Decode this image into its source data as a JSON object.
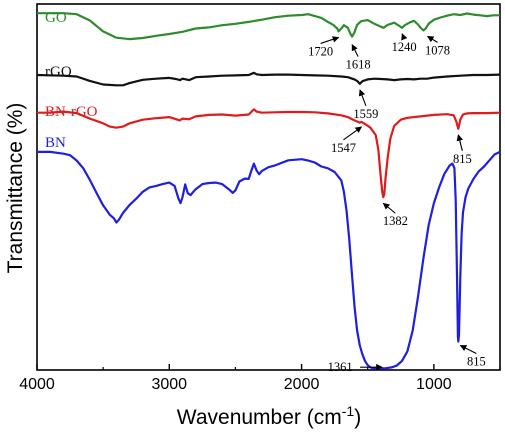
{
  "chart_data": {
    "type": "line",
    "xlabel": "Wavenumber (cm",
    "xlabel_sup": "-1",
    "xlabel_tail": ")",
    "ylabel": "Transmittance (%)",
    "xlim": [
      4000,
      500
    ],
    "x_reversed": true,
    "xticks": [
      4000,
      3000,
      2000,
      1000
    ],
    "xtick_labels": [
      "4000",
      "3000",
      "2000",
      "1000"
    ],
    "y_units": "arbitrary transmittance, curves vertically offset (0-100 scale)",
    "ylim": [
      0,
      100
    ],
    "grid": false,
    "legend": "inline labels at top-left",
    "series": [
      {
        "name": "GO",
        "color": "#2e8b2e",
        "points": [
          [
            4000,
            97.5
          ],
          [
            3800,
            97.5
          ],
          [
            3700,
            97.2
          ],
          [
            3600,
            95.5
          ],
          [
            3500,
            92.5
          ],
          [
            3400,
            90.8
          ],
          [
            3300,
            90.4
          ],
          [
            3200,
            90.7
          ],
          [
            3100,
            91.3
          ],
          [
            3000,
            91.8
          ],
          [
            2900,
            92.4
          ],
          [
            2800,
            93.3
          ],
          [
            2700,
            93.6
          ],
          [
            2600,
            94.2
          ],
          [
            2500,
            94.6
          ],
          [
            2400,
            95.1
          ],
          [
            2300,
            95.7
          ],
          [
            2200,
            96.4
          ],
          [
            2100,
            96.8
          ],
          [
            2000,
            97
          ],
          [
            1950,
            97.2
          ],
          [
            1900,
            96.7
          ],
          [
            1850,
            96.2
          ],
          [
            1800,
            95.1
          ],
          [
            1760,
            94.3
          ],
          [
            1730,
            93.3
          ],
          [
            1720,
            92.5
          ],
          [
            1700,
            93.3
          ],
          [
            1680,
            94.2
          ],
          [
            1650,
            93.5
          ],
          [
            1630,
            91.8
          ],
          [
            1618,
            91.1
          ],
          [
            1600,
            92.3
          ],
          [
            1580,
            94.3
          ],
          [
            1550,
            95.3
          ],
          [
            1500,
            95.6
          ],
          [
            1450,
            94.6
          ],
          [
            1400,
            93.8
          ],
          [
            1380,
            93.5
          ],
          [
            1350,
            94.3
          ],
          [
            1300,
            94.9
          ],
          [
            1260,
            94
          ],
          [
            1240,
            93.5
          ],
          [
            1220,
            94.2
          ],
          [
            1180,
            95
          ],
          [
            1150,
            95.4
          ],
          [
            1120,
            94.4
          ],
          [
            1100,
            93.5
          ],
          [
            1078,
            92.8
          ],
          [
            1060,
            93.4
          ],
          [
            1040,
            94.6
          ],
          [
            1000,
            95.7
          ],
          [
            950,
            96.3
          ],
          [
            900,
            96.8
          ],
          [
            850,
            97.2
          ],
          [
            800,
            97
          ],
          [
            750,
            97.4
          ],
          [
            700,
            97.1
          ],
          [
            650,
            96.9
          ],
          [
            600,
            96.7
          ],
          [
            550,
            96.9
          ],
          [
            500,
            96.9
          ]
        ]
      },
      {
        "name": "rGO",
        "color": "#111111",
        "points": [
          [
            4000,
            80.6
          ],
          [
            3800,
            80.4
          ],
          [
            3700,
            80.2
          ],
          [
            3600,
            79
          ],
          [
            3500,
            78
          ],
          [
            3400,
            77.8
          ],
          [
            3350,
            77.8
          ],
          [
            3300,
            78.4
          ],
          [
            3200,
            79.3
          ],
          [
            3100,
            79.6
          ],
          [
            3000,
            79.8
          ],
          [
            2950,
            79.5
          ],
          [
            2920,
            79.2
          ],
          [
            2900,
            79.6
          ],
          [
            2850,
            79.2
          ],
          [
            2800,
            80
          ],
          [
            2700,
            80.2
          ],
          [
            2600,
            80.4
          ],
          [
            2500,
            80.5
          ],
          [
            2400,
            80.6
          ],
          [
            2360,
            81.2
          ],
          [
            2340,
            80.8
          ],
          [
            2300,
            80.6
          ],
          [
            2200,
            80.7
          ],
          [
            2100,
            80.7
          ],
          [
            2000,
            80.6
          ],
          [
            1900,
            80.5
          ],
          [
            1800,
            80.4
          ],
          [
            1700,
            80.2
          ],
          [
            1650,
            80
          ],
          [
            1600,
            79.4
          ],
          [
            1580,
            79
          ],
          [
            1559,
            78.2
          ],
          [
            1540,
            78.9
          ],
          [
            1500,
            79.4
          ],
          [
            1450,
            79.6
          ],
          [
            1400,
            79.5
          ],
          [
            1350,
            79.4
          ],
          [
            1300,
            79.2
          ],
          [
            1250,
            79.4
          ],
          [
            1200,
            79.5
          ],
          [
            1150,
            79.4
          ],
          [
            1100,
            79.6
          ],
          [
            1050,
            79.6
          ],
          [
            1000,
            79.9
          ],
          [
            900,
            80.2
          ],
          [
            800,
            80.4
          ],
          [
            700,
            80.6
          ],
          [
            600,
            80.6
          ],
          [
            500,
            80.7
          ]
        ]
      },
      {
        "name": "BN-rGO",
        "color": "#e01b1b",
        "points": [
          [
            4000,
            70.3
          ],
          [
            3900,
            70.3
          ],
          [
            3800,
            70.6
          ],
          [
            3700,
            70.2
          ],
          [
            3600,
            68.7
          ],
          [
            3500,
            67.4
          ],
          [
            3450,
            66.5
          ],
          [
            3400,
            66.2
          ],
          [
            3350,
            66.5
          ],
          [
            3300,
            67.4
          ],
          [
            3200,
            68.4
          ],
          [
            3100,
            68.8
          ],
          [
            3000,
            69.1
          ],
          [
            2920,
            68.2
          ],
          [
            2900,
            68.7
          ],
          [
            2850,
            68.5
          ],
          [
            2800,
            69.3
          ],
          [
            2700,
            69.7
          ],
          [
            2600,
            69.8
          ],
          [
            2500,
            69.5
          ],
          [
            2400,
            69.8
          ],
          [
            2360,
            71.2
          ],
          [
            2340,
            70.6
          ],
          [
            2300,
            70.3
          ],
          [
            2200,
            70.4
          ],
          [
            2100,
            70.5
          ],
          [
            2000,
            70.5
          ],
          [
            1900,
            70.4
          ],
          [
            1800,
            70.1
          ],
          [
            1700,
            69.6
          ],
          [
            1650,
            69.1
          ],
          [
            1600,
            68.2
          ],
          [
            1560,
            67.6
          ],
          [
            1547,
            67.8
          ],
          [
            1520,
            67.2
          ],
          [
            1480,
            66.2
          ],
          [
            1440,
            64.2
          ],
          [
            1420,
            60.3
          ],
          [
            1400,
            52.3
          ],
          [
            1390,
            48.6
          ],
          [
            1382,
            47.2
          ],
          [
            1375,
            48.1
          ],
          [
            1365,
            52.6
          ],
          [
            1350,
            57.8
          ],
          [
            1330,
            63.1
          ],
          [
            1300,
            66.7
          ],
          [
            1250,
            68.4
          ],
          [
            1200,
            68.9
          ],
          [
            1100,
            69.3
          ],
          [
            1000,
            69.7
          ],
          [
            900,
            69.9
          ],
          [
            850,
            69.6
          ],
          [
            830,
            67.9
          ],
          [
            815,
            65.9
          ],
          [
            800,
            68.4
          ],
          [
            780,
            69.8
          ],
          [
            750,
            70.1
          ],
          [
            700,
            70.2
          ],
          [
            600,
            70.2
          ],
          [
            500,
            70.3
          ]
        ]
      },
      {
        "name": "BN",
        "color": "#1f1fe0",
        "points": [
          [
            4000,
            59.6
          ],
          [
            3900,
            59.6
          ],
          [
            3800,
            59.1
          ],
          [
            3750,
            58.7
          ],
          [
            3700,
            57.2
          ],
          [
            3650,
            55.1
          ],
          [
            3600,
            51.9
          ],
          [
            3550,
            48.4
          ],
          [
            3500,
            45
          ],
          [
            3450,
            42.4
          ],
          [
            3420,
            41.5
          ],
          [
            3400,
            40.3
          ],
          [
            3380,
            41.1
          ],
          [
            3350,
            42.9
          ],
          [
            3300,
            45.1
          ],
          [
            3250,
            46.8
          ],
          [
            3200,
            48.7
          ],
          [
            3150,
            49.9
          ],
          [
            3100,
            50.3
          ],
          [
            3050,
            50.8
          ],
          [
            3000,
            51.2
          ],
          [
            2960,
            50.3
          ],
          [
            2930,
            46.8
          ],
          [
            2915,
            45.6
          ],
          [
            2900,
            47.2
          ],
          [
            2880,
            50.7
          ],
          [
            2860,
            48.3
          ],
          [
            2840,
            47.8
          ],
          [
            2800,
            49.4
          ],
          [
            2750,
            50.8
          ],
          [
            2700,
            51.1
          ],
          [
            2650,
            51.2
          ],
          [
            2600,
            50.8
          ],
          [
            2550,
            49.4
          ],
          [
            2520,
            48.4
          ],
          [
            2500,
            49.1
          ],
          [
            2470,
            51.5
          ],
          [
            2430,
            52.3
          ],
          [
            2400,
            52.2
          ],
          [
            2380,
            54.4
          ],
          [
            2360,
            56.4
          ],
          [
            2340,
            54.5
          ],
          [
            2320,
            53.5
          ],
          [
            2300,
            54.4
          ],
          [
            2250,
            55.4
          ],
          [
            2200,
            55.9
          ],
          [
            2100,
            57.3
          ],
          [
            2000,
            57.6
          ],
          [
            1950,
            57.2
          ],
          [
            1900,
            56.7
          ],
          [
            1850,
            55.6
          ],
          [
            1800,
            55.1
          ],
          [
            1750,
            54.1
          ],
          [
            1700,
            51.8
          ],
          [
            1680,
            48.7
          ],
          [
            1660,
            43.6
          ],
          [
            1640,
            35.9
          ],
          [
            1620,
            26.7
          ],
          [
            1600,
            17.4
          ],
          [
            1580,
            10.8
          ],
          [
            1560,
            6.7
          ],
          [
            1540,
            4.3
          ],
          [
            1520,
            2.4
          ],
          [
            1500,
            1.3
          ],
          [
            1480,
            0.7
          ],
          [
            1450,
            0.4
          ],
          [
            1400,
            0.4
          ],
          [
            1361,
            0.5
          ],
          [
            1320,
            0.7
          ],
          [
            1280,
            1.2
          ],
          [
            1240,
            2.5
          ],
          [
            1200,
            5.1
          ],
          [
            1160,
            10.8
          ],
          [
            1120,
            20
          ],
          [
            1080,
            30.3
          ],
          [
            1040,
            39.5
          ],
          [
            1000,
            45.6
          ],
          [
            960,
            49.9
          ],
          [
            920,
            53.6
          ],
          [
            880,
            55.9
          ],
          [
            860,
            56.4
          ],
          [
            845,
            55.2
          ],
          [
            835,
            46.5
          ],
          [
            825,
            25.9
          ],
          [
            818,
            9.2
          ],
          [
            815,
            7.8
          ],
          [
            810,
            9.5
          ],
          [
            800,
            25.4
          ],
          [
            790,
            37.1
          ],
          [
            780,
            43.1
          ],
          [
            760,
            47.3
          ],
          [
            740,
            49.6
          ],
          [
            700,
            52.2
          ],
          [
            660,
            54.3
          ],
          [
            620,
            55.6
          ],
          [
            580,
            57.3
          ],
          [
            540,
            58.9
          ],
          [
            500,
            59.6
          ]
        ]
      }
    ],
    "annotations": [
      {
        "label": "1720",
        "series": "GO",
        "x": 1720
      },
      {
        "label": "1618",
        "series": "GO",
        "x": 1618
      },
      {
        "label": "1240",
        "series": "GO",
        "x": 1240
      },
      {
        "label": "1078",
        "series": "GO",
        "x": 1078
      },
      {
        "label": "1559",
        "series": "rGO",
        "x": 1559
      },
      {
        "label": "1547",
        "series": "BN-rGO",
        "x": 1547
      },
      {
        "label": "815",
        "series": "BN-rGO",
        "x": 815
      },
      {
        "label": "1382",
        "series": "BN-rGO",
        "x": 1382
      },
      {
        "label": "1361",
        "series": "BN",
        "x": 1361
      },
      {
        "label": "815",
        "series": "BN",
        "x": 815
      }
    ]
  }
}
